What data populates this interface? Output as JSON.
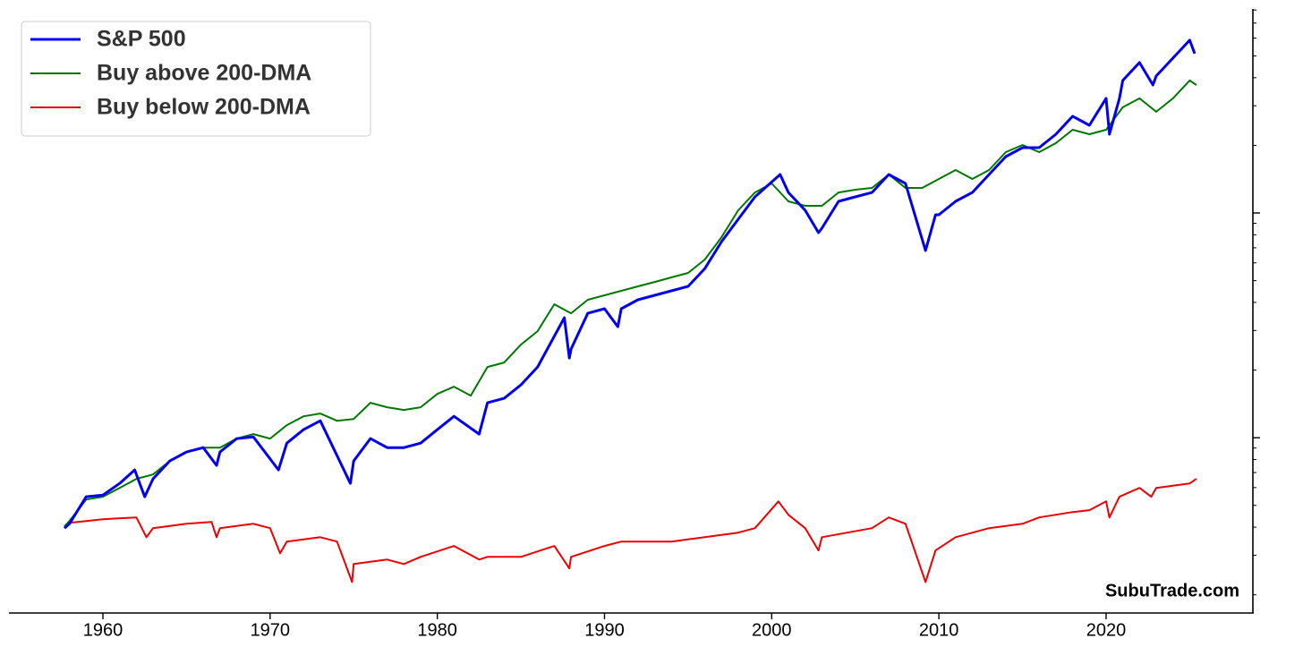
{
  "chart_data": {
    "type": "line",
    "yscale": "log",
    "legend": "upper left",
    "grid": false,
    "ytick_labels": false,
    "watermark": "SubuTrade.com",
    "xlim": [
      1954.38,
      2028.78
    ],
    "xticks": [
      1960,
      1970,
      1980,
      1990,
      2000,
      2010,
      2020
    ],
    "ylim": [
      16.6,
      8090
    ],
    "yticks": [
      100,
      1000
    ],
    "yminorticks": [
      20,
      30,
      40,
      50,
      60,
      70,
      80,
      90,
      200,
      300,
      400,
      500,
      600,
      700,
      800,
      900,
      2000,
      3000,
      4000,
      5000,
      6000,
      7000,
      8000
    ],
    "series": [
      {
        "name": "S&P 500",
        "color": "#0000ee",
        "width": 3,
        "x": [
          1957.7,
          1958,
          1959,
          1960,
          1961,
          1961.9,
          1962.5,
          1963,
          1964,
          1965,
          1966,
          1966.8,
          1967,
          1968,
          1969,
          1970.5,
          1971,
          1972,
          1973,
          1974.8,
          1975,
          1976,
          1977,
          1978,
          1979,
          1980,
          1981,
          1982.5,
          1983,
          1984,
          1985,
          1986,
          1987.6,
          1987.9,
          1988,
          1989,
          1990,
          1990.8,
          1991,
          1992,
          1993,
          1994,
          1995,
          1996,
          1997,
          1998,
          1999,
          2000.5,
          2001,
          2002,
          2002.8,
          2003,
          2004,
          2005,
          2006,
          2007,
          2008,
          2009.2,
          2009.8,
          2010,
          2011,
          2012,
          2013,
          2014,
          2015,
          2016,
          2017,
          2018,
          2019,
          2020,
          2020.2,
          2020.8,
          2021,
          2022,
          2022.8,
          2023,
          2024,
          2025,
          2025.3
        ],
        "values": [
          39.6,
          41.4,
          54.6,
          55.6,
          62.6,
          71.9,
          54.6,
          65.6,
          78.8,
          86.4,
          90.4,
          75.3,
          86.4,
          99.1,
          100.9,
          71.9,
          94.6,
          108.6,
          119,
          62.6,
          78.8,
          99.1,
          90.4,
          90.4,
          94.6,
          108.6,
          124.6,
          103.8,
          143,
          149.7,
          171.8,
          206.5,
          341.8,
          226.3,
          248,
          357.9,
          374.8,
          311.9,
          374.8,
          410.8,
          430.1,
          450.3,
          471.4,
          566.2,
          745.8,
          937.8,
          1180,
          1483,
          1234,
          1028,
          817.5,
          855.6,
          1127,
          1180,
          1234,
          1483,
          1353,
          680.2,
          981.7,
          981.7,
          1127,
          1234,
          1483,
          1782,
          1953,
          1953,
          2242,
          2694,
          2457,
          3236,
          2242,
          3236,
          3887,
          4670,
          3712,
          4070,
          4891,
          5873,
          5120
        ]
      },
      {
        "name": "Buy above 200-DMA",
        "color": "#007700",
        "width": 2,
        "x": [
          1957.7,
          1958,
          1959,
          1960,
          1961,
          1962,
          1963,
          1964,
          1965,
          1966,
          1967,
          1968,
          1969,
          1970,
          1971,
          1972,
          1973,
          1974,
          1975,
          1976,
          1977,
          1978,
          1979,
          1980,
          1981,
          1982,
          1983,
          1984,
          1985,
          1986,
          1987,
          1988,
          1989,
          1990,
          1991,
          1992,
          1993,
          1994,
          1995,
          1996,
          1997,
          1998,
          1999,
          2000,
          2001,
          2002,
          2003,
          2004,
          2005,
          2006,
          2007,
          2008,
          2009,
          2010,
          2011,
          2012,
          2013,
          2014,
          2015,
          2016,
          2017,
          2018,
          2019,
          2020,
          2021,
          2022,
          2023,
          2024,
          2025,
          2025.4
        ],
        "values": [
          40.3,
          42.6,
          53.1,
          54.6,
          59.8,
          65.6,
          68.6,
          78.8,
          86.4,
          90.4,
          90.4,
          99.1,
          103.8,
          99.1,
          113.7,
          124.6,
          128.1,
          119,
          121.2,
          143,
          136.6,
          132.9,
          136.6,
          156.7,
          168.7,
          153.9,
          206.5,
          216.2,
          259.6,
          297.9,
          392.4,
          357.9,
          410.8,
          430.1,
          450.3,
          471.4,
          493.4,
          516.6,
          541,
          620.7,
          780.5,
          1028,
          1234,
          1353,
          1127,
          1076,
          1076,
          1234,
          1269,
          1293,
          1483,
          1293,
          1293,
          1417,
          1553,
          1417,
          1553,
          1866,
          2008,
          1866,
          2046,
          2347,
          2242,
          2347,
          2953,
          3236,
          2820,
          3236,
          3887,
          3712
        ]
      },
      {
        "name": "Buy below 200-DMA",
        "color": "#ee0000",
        "width": 2,
        "x": [
          1957.7,
          1958,
          1960,
          1962,
          1962.6,
          1963,
          1965,
          1966.5,
          1966.8,
          1967,
          1969,
          1970,
          1970.6,
          1971,
          1973,
          1974,
          1974.9,
          1975,
          1977,
          1978,
          1979,
          1981,
          1982.5,
          1983,
          1985,
          1987,
          1987.9,
          1988,
          1990,
          1991,
          1994,
          1996,
          1998,
          1999,
          2000.4,
          2001,
          2002,
          2002.8,
          2003,
          2006,
          2007,
          2008,
          2009.2,
          2009.8,
          2011,
          2013,
          2015,
          2016,
          2018,
          2019,
          2020,
          2020.2,
          2020.8,
          2022,
          2022.7,
          2023,
          2025,
          2025.4
        ],
        "values": [
          39.6,
          41.8,
          43.4,
          44.2,
          36.1,
          39.6,
          41.4,
          42.2,
          36.1,
          39.6,
          41.4,
          39.6,
          30.6,
          34.5,
          36.1,
          34.5,
          22.8,
          27.4,
          28.7,
          27.4,
          29.5,
          33,
          28.7,
          29.5,
          29.5,
          33,
          26.2,
          29.5,
          33,
          34.5,
          34.5,
          36.1,
          37.8,
          39.6,
          52.1,
          45.4,
          39.6,
          31.5,
          36.1,
          39.6,
          44.2,
          41.4,
          22.8,
          31.5,
          36.1,
          39.6,
          41.4,
          44.2,
          46.7,
          47.6,
          52.1,
          44.2,
          54.6,
          59.8,
          54.6,
          59.8,
          62.6,
          65.6
        ]
      }
    ]
  }
}
